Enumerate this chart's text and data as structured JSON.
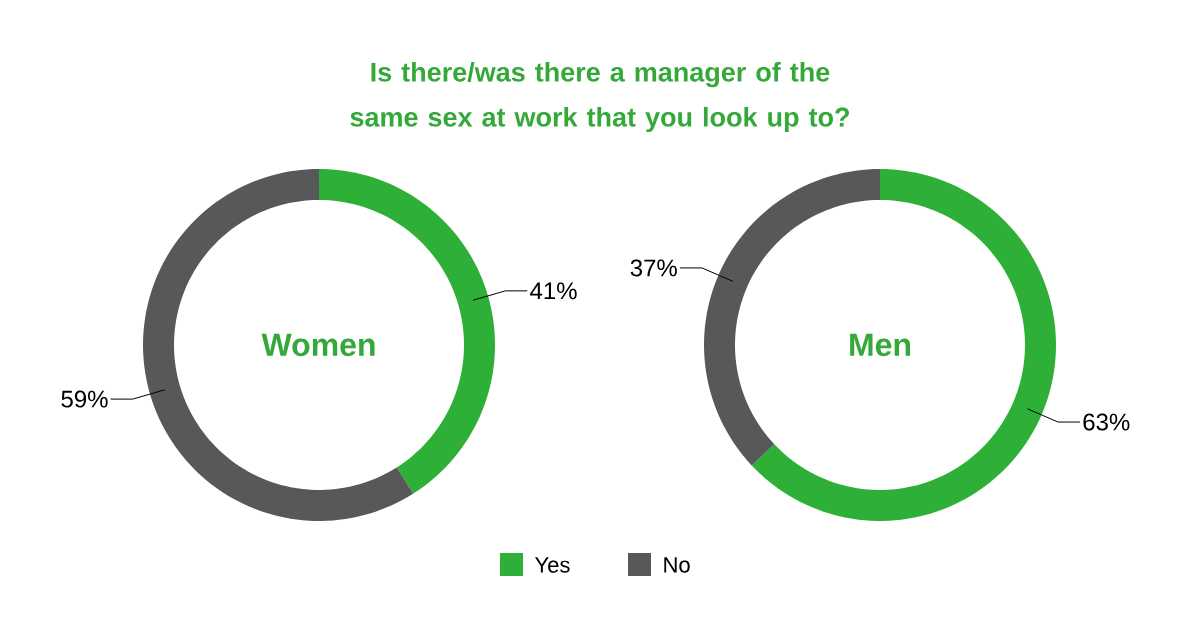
{
  "chart_data": [
    {
      "type": "donut",
      "title": "Is there/was there a manager of the same sex at work that you look up to?",
      "annotations": [
        "Women"
      ],
      "categories": [
        "Yes",
        "No"
      ],
      "values": [
        41,
        59
      ],
      "colors": [
        "#2eaf37",
        "#58585a"
      ],
      "value_labels": [
        "41%",
        "59%"
      ],
      "legend": "bottom"
    },
    {
      "type": "donut",
      "annotations": [
        "Men"
      ],
      "categories": [
        null,
        null
      ],
      "values": [
        63,
        37
      ],
      "colors": [
        "#2eaf37",
        "#58585a"
      ],
      "value_labels": [
        "63%",
        "37%"
      ]
    }
  ]
}
